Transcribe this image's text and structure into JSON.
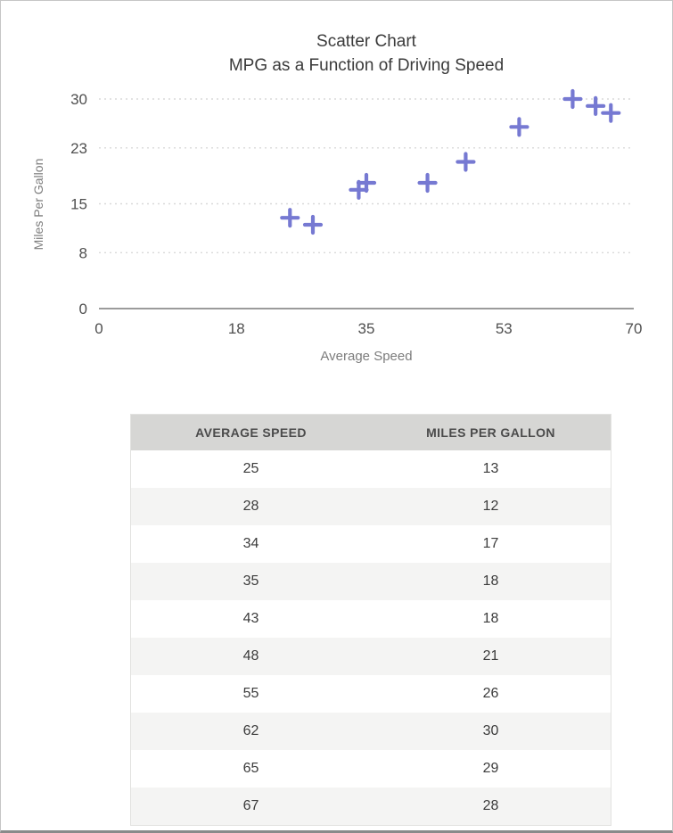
{
  "chart": {
    "title_line1": "Scatter Chart",
    "title_line2": "MPG as a Function of Driving Speed",
    "xlabel": "Average Speed",
    "ylabel": "Miles Per Gallon"
  },
  "chart_data": {
    "type": "scatter",
    "title": "Scatter Chart — MPG as a Function of Driving Speed",
    "xlabel": "Average Speed",
    "ylabel": "Miles Per Gallon",
    "xlim": [
      0,
      70
    ],
    "ylim": [
      0,
      30
    ],
    "xticks": [
      0,
      18,
      35,
      53,
      70
    ],
    "yticks": [
      0,
      8,
      15,
      23,
      30
    ],
    "grid": "horizontal-dotted",
    "legend": "none",
    "marker": "plus",
    "marker_color": "#7679d2",
    "series": [
      {
        "name": "Miles Per Gallon",
        "points": [
          [
            25,
            13
          ],
          [
            28,
            12
          ],
          [
            34,
            17
          ],
          [
            35,
            18
          ],
          [
            43,
            18
          ],
          [
            48,
            21
          ],
          [
            55,
            26
          ],
          [
            62,
            30
          ],
          [
            65,
            29
          ],
          [
            67,
            28
          ]
        ]
      }
    ]
  },
  "table": {
    "headers": [
      "AVERAGE SPEED",
      "MILES PER GALLON"
    ],
    "rows": [
      [
        "25",
        "13"
      ],
      [
        "28",
        "12"
      ],
      [
        "34",
        "17"
      ],
      [
        "35",
        "18"
      ],
      [
        "43",
        "18"
      ],
      [
        "48",
        "21"
      ],
      [
        "55",
        "26"
      ],
      [
        "62",
        "30"
      ],
      [
        "65",
        "29"
      ],
      [
        "67",
        "28"
      ]
    ]
  },
  "colors": {
    "marker": "#7679d2",
    "gridline": "#d9d9d9",
    "axis_line": "#9b9b9b",
    "table_header_bg": "#d6d6d4",
    "table_alt_row_bg": "#f4f4f3",
    "frame_border": "#c6c6c6"
  }
}
